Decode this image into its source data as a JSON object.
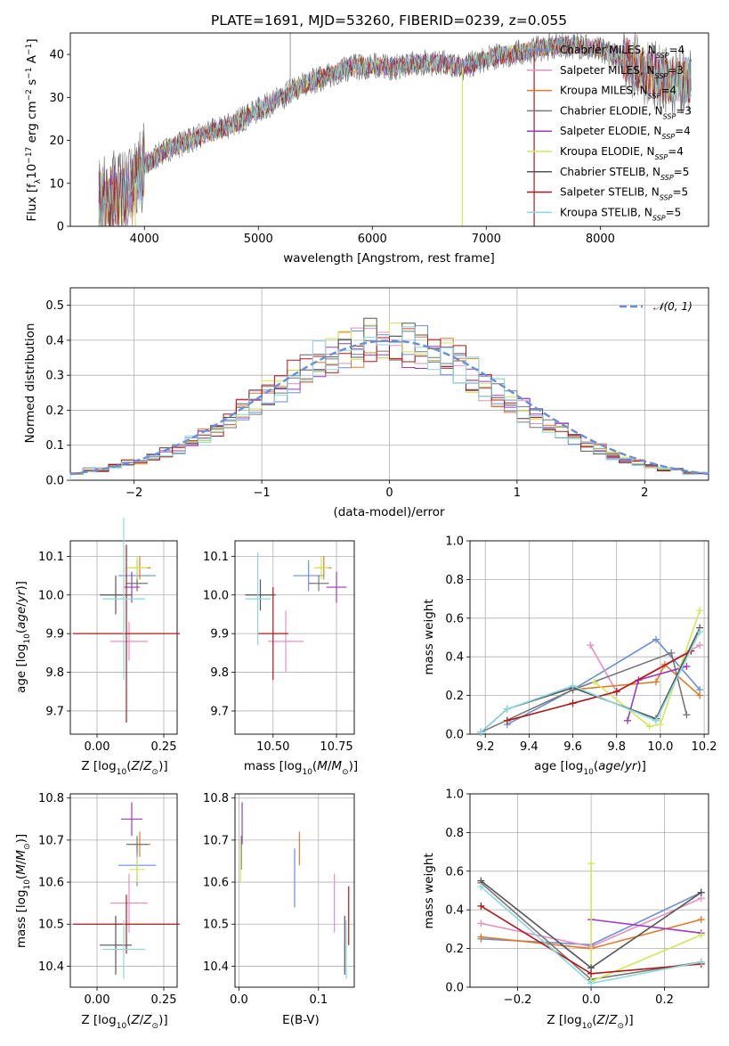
{
  "colors": [
    "#6b8fd6",
    "#e88fc0",
    "#e07b2a",
    "#777777",
    "#9b3bc4",
    "#cfe85a",
    "#555555",
    "#b01818",
    "#88d8e0"
  ],
  "chart_data": [
    {
      "id": "spectrum",
      "type": "line",
      "title": "PLATE=1691, MJD=53260, FIBERID=0239, z=0.055",
      "xlabel": "wavelength [Angstrom, rest frame]",
      "ylabel": "Flux [f_λ 10^-17 erg cm^-2 s^-1 A^-1]",
      "xlim": [
        3350,
        8950
      ],
      "ylim": [
        0,
        45
      ],
      "xticks": [
        4000,
        5000,
        6000,
        7000,
        8000
      ],
      "yticks": [
        0,
        10,
        20,
        30,
        40
      ],
      "legend_position": "right",
      "series_labels": [
        {
          "base": "Chabrier MILES, N",
          "sub": "SSP",
          "eq": "=4"
        },
        {
          "base": "Salpeter MILES, N",
          "sub": "SSP",
          "eq": "=3"
        },
        {
          "base": "Kroupa MILES, N",
          "sub": "SSP",
          "eq": "=4"
        },
        {
          "base": "Chabrier ELODIE, N",
          "sub": "SSP",
          "eq": "=3"
        },
        {
          "base": "Salpeter ELODIE, N",
          "sub": "SSP",
          "eq": "=4"
        },
        {
          "base": "Kroupa ELODIE, N",
          "sub": "SSP",
          "eq": "=4"
        },
        {
          "base": "Chabrier STELIB, N",
          "sub": "SSP",
          "eq": "=5"
        },
        {
          "base": "Salpeter STELIB, N",
          "sub": "SSP",
          "eq": "=5"
        },
        {
          "base": "Kroupa STELIB, N",
          "sub": "SSP",
          "eq": "=5"
        }
      ],
      "continuum": [
        [
          3600,
          6
        ],
        [
          3800,
          7
        ],
        [
          3900,
          9
        ],
        [
          4000,
          14
        ],
        [
          4200,
          18
        ],
        [
          4400,
          20
        ],
        [
          4600,
          22
        ],
        [
          4800,
          24
        ],
        [
          5000,
          27
        ],
        [
          5200,
          30
        ],
        [
          5400,
          33
        ],
        [
          5600,
          35
        ],
        [
          5800,
          37
        ],
        [
          6000,
          37.5
        ],
        [
          6200,
          37
        ],
        [
          6400,
          38
        ],
        [
          6600,
          38
        ],
        [
          6800,
          37
        ],
        [
          7000,
          39
        ],
        [
          7200,
          40
        ],
        [
          7400,
          41
        ],
        [
          7600,
          42
        ],
        [
          7800,
          42
        ],
        [
          8000,
          41
        ],
        [
          8200,
          39
        ],
        [
          8400,
          36
        ],
        [
          8600,
          34
        ],
        [
          8800,
          34
        ]
      ]
    },
    {
      "id": "residuals",
      "type": "histogram",
      "xlabel": "(data-model)/error",
      "ylabel": "Normed distribution",
      "xlim": [
        -2.5,
        2.5
      ],
      "ylim": [
        0,
        0.55
      ],
      "xticks": [
        -2,
        -1,
        0,
        1,
        2
      ],
      "yticks": [
        0.0,
        0.1,
        0.2,
        0.3,
        0.4,
        0.5
      ],
      "grid": true,
      "legend_position": "top-right",
      "reference_curve": "𝒩(0, 1)",
      "bin_width": 0.1,
      "bin_start": -2.5,
      "bin_centers": [
        0.02,
        0.03,
        0.03,
        0.04,
        0.05,
        0.05,
        0.07,
        0.08,
        0.09,
        0.11,
        0.13,
        0.15,
        0.17,
        0.2,
        0.22,
        0.25,
        0.27,
        0.3,
        0.32,
        0.35,
        0.36,
        0.38,
        0.39,
        0.4,
        0.41,
        0.4,
        0.39,
        0.38,
        0.37,
        0.35,
        0.33,
        0.3,
        0.27,
        0.25,
        0.22,
        0.2,
        0.18,
        0.16,
        0.14,
        0.12,
        0.1,
        0.09,
        0.07,
        0.06,
        0.05,
        0.04,
        0.03,
        0.03,
        0.02,
        0.02
      ]
    },
    {
      "id": "age-vs-Z",
      "type": "scatter",
      "xlabel": "Z [log10(Z/Z⊙)]",
      "ylabel": "age [log10(age/yr)]",
      "xlim": [
        -0.1,
        0.3
      ],
      "ylim": [
        9.64,
        10.14
      ],
      "xticks": [
        0.0,
        0.25
      ],
      "yticks": [
        9.7,
        9.8,
        9.9,
        10.0,
        10.1
      ],
      "points": [
        {
          "x": 0.15,
          "y": 10.05,
          "ex": 0.07,
          "ey": 0.04
        },
        {
          "x": 0.12,
          "y": 9.88,
          "ex": 0.07,
          "ey": 0.05
        },
        {
          "x": 0.16,
          "y": 10.07,
          "ex": 0.04,
          "ey": 0.03
        },
        {
          "x": 0.15,
          "y": 10.03,
          "ex": 0.04,
          "ey": 0.02
        },
        {
          "x": 0.13,
          "y": 10.02,
          "ex": 0.03,
          "ey": 0.04
        },
        {
          "x": 0.15,
          "y": 10.07,
          "ex": 0.04,
          "ey": 0.03
        },
        {
          "x": 0.07,
          "y": 10.0,
          "ex": 0.06,
          "ey": 0.05
        },
        {
          "x": 0.11,
          "y": 9.9,
          "ex": 0.2,
          "ey": 0.23
        },
        {
          "x": 0.1,
          "y": 9.99,
          "ex": 0.08,
          "ey": 0.21
        }
      ]
    },
    {
      "id": "age-vs-mass",
      "type": "scatter",
      "xlabel": "mass [log10(M/M⊙)]",
      "ylabel": "",
      "xlim": [
        10.35,
        10.82
      ],
      "ylim": [
        9.64,
        10.14
      ],
      "xticks": [
        10.5,
        10.75
      ],
      "yticks": [
        9.7,
        9.8,
        9.9,
        10.0,
        10.1
      ],
      "points": [
        {
          "x": 10.64,
          "y": 10.05,
          "ex": 0.06,
          "ey": 0.04
        },
        {
          "x": 10.55,
          "y": 9.88,
          "ex": 0.07,
          "ey": 0.08
        },
        {
          "x": 10.7,
          "y": 10.07,
          "ex": 0.03,
          "ey": 0.03
        },
        {
          "x": 10.68,
          "y": 10.03,
          "ex": 0.04,
          "ey": 0.02
        },
        {
          "x": 10.75,
          "y": 10.02,
          "ex": 0.04,
          "ey": 0.04
        },
        {
          "x": 10.69,
          "y": 10.07,
          "ex": 0.03,
          "ey": 0.03
        },
        {
          "x": 10.45,
          "y": 10.0,
          "ex": 0.06,
          "ey": 0.04
        },
        {
          "x": 10.5,
          "y": 9.9,
          "ex": 0.06,
          "ey": 0.12
        },
        {
          "x": 10.44,
          "y": 9.99,
          "ex": 0.05,
          "ey": 0.12
        }
      ]
    },
    {
      "id": "massweight-vs-age",
      "type": "line",
      "xlabel": "age [log10(age/yr)]",
      "ylabel": "mass weight",
      "xlim": [
        9.13,
        10.22
      ],
      "ylim": [
        0,
        1.0
      ],
      "xticks": [
        9.2,
        9.4,
        9.6,
        9.8,
        10.0,
        10.2
      ],
      "yticks": [
        0.0,
        0.2,
        0.4,
        0.6,
        0.8,
        1.0
      ],
      "grid": true,
      "series": [
        {
          "x": [
            9.3,
            9.6,
            9.98,
            10.18
          ],
          "y": [
            0.05,
            0.23,
            0.49,
            0.23
          ]
        },
        {
          "x": [
            9.68,
            9.8,
            10.18
          ],
          "y": [
            0.46,
            0.22,
            0.46
          ]
        },
        {
          "x": [
            9.6,
            9.98,
            10.02,
            10.18
          ],
          "y": [
            0.23,
            0.27,
            0.36,
            0.2
          ]
        },
        {
          "x": [
            9.18,
            9.6,
            10.05,
            10.12
          ],
          "y": [
            0.01,
            0.23,
            0.42,
            0.1
          ]
        },
        {
          "x": [
            9.85,
            9.9,
            10.12
          ],
          "y": [
            0.07,
            0.28,
            0.35
          ]
        },
        {
          "x": [
            9.7,
            9.95,
            10.0,
            10.18
          ],
          "y": [
            0.27,
            0.04,
            0.05,
            0.64
          ]
        },
        {
          "x": [
            9.18,
            9.3,
            9.6,
            9.98,
            10.18
          ],
          "y": [
            0.01,
            0.13,
            0.24,
            0.08,
            0.55
          ]
        },
        {
          "x": [
            9.3,
            9.6,
            9.8,
            10.14
          ],
          "y": [
            0.07,
            0.16,
            0.22,
            0.43
          ]
        },
        {
          "x": [
            9.18,
            9.3,
            9.6,
            9.98,
            10.18
          ],
          "y": [
            0.01,
            0.13,
            0.25,
            0.07,
            0.53
          ]
        }
      ]
    },
    {
      "id": "mass-vs-Z",
      "type": "scatter",
      "xlabel": "Z [log10(Z/Z⊙)]",
      "ylabel": "mass [log10(M/M⊙)]",
      "xlim": [
        -0.1,
        0.3
      ],
      "ylim": [
        10.35,
        10.81
      ],
      "xticks": [
        0.0,
        0.25
      ],
      "yticks": [
        10.4,
        10.5,
        10.6,
        10.7,
        10.8
      ],
      "points": [
        {
          "x": 0.15,
          "y": 10.64,
          "ex": 0.07,
          "ey": 0.05
        },
        {
          "x": 0.12,
          "y": 10.55,
          "ex": 0.07,
          "ey": 0.07
        },
        {
          "x": 0.16,
          "y": 10.69,
          "ex": 0.04,
          "ey": 0.03
        },
        {
          "x": 0.15,
          "y": 10.69,
          "ex": 0.04,
          "ey": 0.02
        },
        {
          "x": 0.13,
          "y": 10.75,
          "ex": 0.04,
          "ey": 0.04
        },
        {
          "x": 0.15,
          "y": 10.63,
          "ex": 0.03,
          "ey": 0.03
        },
        {
          "x": 0.07,
          "y": 10.45,
          "ex": 0.06,
          "ey": 0.07
        },
        {
          "x": 0.11,
          "y": 10.5,
          "ex": 0.2,
          "ey": 0.07
        },
        {
          "x": 0.1,
          "y": 10.44,
          "ex": 0.08,
          "ey": 0.07
        }
      ]
    },
    {
      "id": "mass-vs-EBV",
      "type": "scatter",
      "xlabel": "E(B-V)",
      "ylabel": "",
      "xlim": [
        -0.005,
        0.145
      ],
      "ylim": [
        10.35,
        10.81
      ],
      "xticks": [
        0.0,
        0.1
      ],
      "yticks": [
        10.4,
        10.5,
        10.6,
        10.7,
        10.8
      ],
      "points": [
        {
          "x": 0.07,
          "y": 10.61,
          "ex": 0,
          "ey": 0.07
        },
        {
          "x": 0.12,
          "y": 10.55,
          "ex": 0,
          "ey": 0.07
        },
        {
          "x": 0.076,
          "y": 10.68,
          "ex": 0,
          "ey": 0.04
        },
        {
          "x": 0.003,
          "y": 10.67,
          "ex": 0,
          "ey": 0.04
        },
        {
          "x": 0.004,
          "y": 10.74,
          "ex": 0,
          "ey": 0.05
        },
        {
          "x": 0.002,
          "y": 10.65,
          "ex": 0,
          "ey": 0.05
        },
        {
          "x": 0.133,
          "y": 10.45,
          "ex": 0,
          "ey": 0.07
        },
        {
          "x": 0.138,
          "y": 10.52,
          "ex": 0,
          "ey": 0.07
        },
        {
          "x": 0.135,
          "y": 10.44,
          "ex": 0,
          "ey": 0.07
        }
      ]
    },
    {
      "id": "massweight-vs-Z",
      "type": "line",
      "xlabel": "Z [log10(Z/Z⊙)]",
      "ylabel": "mass weight",
      "xlim": [
        -0.33,
        0.32
      ],
      "ylim": [
        0,
        1.0
      ],
      "xticks": [
        -0.2,
        0.0,
        0.2
      ],
      "yticks": [
        0.0,
        0.2,
        0.4,
        0.6,
        0.8,
        1.0
      ],
      "grid": true,
      "series": [
        {
          "x": [
            -0.3,
            0.0,
            0.3
          ],
          "y": [
            0.25,
            0.22,
            0.49
          ]
        },
        {
          "x": [
            -0.3,
            0.0,
            0.3
          ],
          "y": [
            0.33,
            0.21,
            0.46
          ]
        },
        {
          "x": [
            -0.3,
            0.0,
            0.3
          ],
          "y": [
            0.26,
            0.2,
            0.35
          ]
        },
        {
          "x": [
            -0.3,
            0.0,
            0.3
          ],
          "y": [
            0.54,
            0.04,
            0.13
          ]
        },
        {
          "x": [
            0.0,
            0.3
          ],
          "y": [
            0.35,
            0.28
          ]
        },
        {
          "x": [
            0.0,
            0.0,
            0.3
          ],
          "y": [
            0.64,
            0.03,
            0.27
          ]
        },
        {
          "x": [
            -0.3,
            0.0,
            0.3
          ],
          "y": [
            0.55,
            0.1,
            0.49
          ]
        },
        {
          "x": [
            -0.3,
            0.0,
            0.3
          ],
          "y": [
            0.42,
            0.07,
            0.12
          ]
        },
        {
          "x": [
            -0.3,
            0.0,
            0.3
          ],
          "y": [
            0.52,
            0.02,
            0.13
          ]
        }
      ]
    }
  ]
}
